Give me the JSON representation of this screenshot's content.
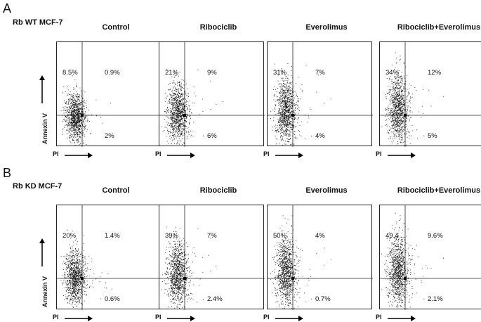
{
  "panels": [
    {
      "letter": "A",
      "condition": "Rb WT MCF-7",
      "y_axis_label": "Annexin V",
      "x_axis_label": "PI",
      "plots": [
        {
          "title": "Control",
          "ul": "8.5%",
          "ur": "0.9%",
          "lr": "2%",
          "spread": 0.25
        },
        {
          "title": "Ribociclib",
          "ul": "21%",
          "ur": "9%",
          "lr": "6%",
          "spread": 0.5
        },
        {
          "title": "Everolimus",
          "ul": "31%",
          "ur": "7%",
          "lr": "4%",
          "spread": 0.6
        },
        {
          "title": "Ribociclib+Everolimus",
          "ul": "34%",
          "ur": "12%",
          "lr": "5%",
          "spread": 0.7
        }
      ]
    },
    {
      "letter": "B",
      "condition": "Rb KD MCF-7",
      "y_axis_label": "Annexin V",
      "x_axis_label": "PI",
      "plots": [
        {
          "title": "Control",
          "ul": "20%",
          "ur": "1.4%",
          "lr": "0.6%",
          "spread": 0.4
        },
        {
          "title": "Ribociclib",
          "ul": "39%",
          "ur": "7%",
          "lr": "2.4%",
          "spread": 0.6
        },
        {
          "title": "Everolimus",
          "ul": "50%",
          "ur": "4%",
          "lr": "0.7%",
          "spread": 0.7
        },
        {
          "title": "Ribociclib+Everolimus",
          "ul": "49.4",
          "ur": "9.6%",
          "lr": "2.1%",
          "spread": 0.75
        }
      ]
    }
  ]
}
